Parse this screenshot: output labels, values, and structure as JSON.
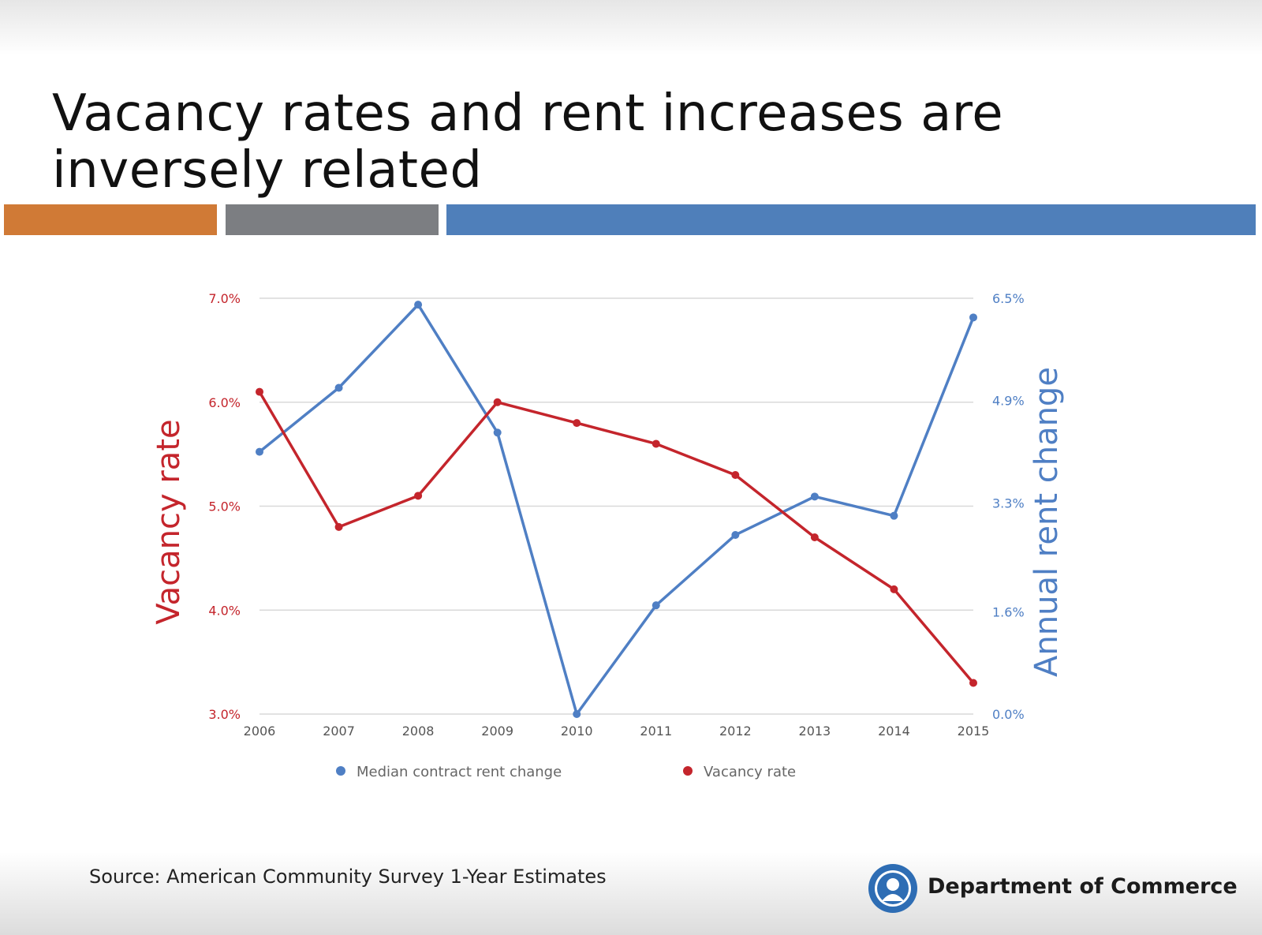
{
  "slide": {
    "title": "Vacancy rates and rent increases are inversely related",
    "source": "Source: American Community Survey 1-Year Estimates",
    "organization": "Department of Commerce",
    "logo_icon": "state-of-washington-seal-icon",
    "accent_colors": [
      "#d07a36",
      "#7c7e82",
      "#4f7fba"
    ]
  },
  "chart_data": {
    "type": "line",
    "categories": [
      "2006",
      "2007",
      "2008",
      "2009",
      "2010",
      "2011",
      "2012",
      "2013",
      "2014",
      "2015"
    ],
    "series": [
      {
        "name": "Median contract rent change",
        "axis": "right",
        "color": "#4f7fc4",
        "values": [
          4.1,
          5.1,
          6.4,
          4.4,
          0.0,
          1.7,
          2.8,
          3.4,
          3.1,
          6.2
        ]
      },
      {
        "name": "Vacancy rate",
        "axis": "left",
        "color": "#c4252c",
        "values": [
          6.1,
          4.8,
          5.1,
          6.0,
          5.8,
          5.6,
          5.3,
          4.7,
          4.2,
          3.3
        ]
      }
    ],
    "y_left": {
      "label": "Vacancy rate",
      "range": [
        3.0,
        7.0
      ],
      "ticks": [
        3.0,
        4.0,
        5.0,
        6.0,
        7.0
      ],
      "tick_labels": [
        "3.0%",
        "4.0%",
        "5.0%",
        "6.0%",
        "7.0%"
      ],
      "color": "#c4252c"
    },
    "y_right": {
      "label": "Annual rent change",
      "range": [
        0.0,
        6.5
      ],
      "ticks": [
        0.0,
        1.6,
        3.3,
        4.9,
        6.5
      ],
      "tick_labels": [
        "0.0%",
        "1.6%",
        "3.3%",
        "4.9%",
        "6.5%"
      ],
      "color": "#4f7fc4"
    },
    "grid": true,
    "legend_position": "bottom"
  }
}
